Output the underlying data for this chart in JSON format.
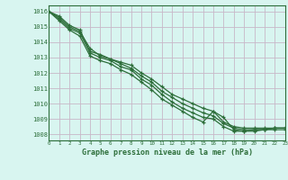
{
  "title": "Graphe pression niveau de la mer (hPa)",
  "bg_color": "#d8f5f0",
  "grid_color": "#c8b8c8",
  "line_color": "#2d6e3a",
  "x_ticks": [
    0,
    1,
    2,
    3,
    4,
    5,
    6,
    7,
    8,
    9,
    10,
    11,
    12,
    13,
    14,
    15,
    16,
    17,
    18,
    19,
    20,
    21,
    22,
    23
  ],
  "y_ticks": [
    1008,
    1009,
    1010,
    1011,
    1012,
    1013,
    1014,
    1015,
    1016
  ],
  "ylim": [
    1007.6,
    1016.4
  ],
  "xlim": [
    0,
    23
  ],
  "series": [
    [
      1016.0,
      1015.7,
      1015.1,
      1014.8,
      1013.4,
      1013.2,
      1012.9,
      1012.7,
      1012.5,
      1012.0,
      1011.6,
      1011.1,
      1010.6,
      1010.3,
      1010.0,
      1009.7,
      1009.5,
      1008.8,
      1008.5,
      1008.4,
      1008.4,
      1008.4,
      1008.4,
      1008.4
    ],
    [
      1016.0,
      1015.6,
      1015.0,
      1014.7,
      1013.6,
      1013.1,
      1012.9,
      1012.6,
      1012.3,
      1011.8,
      1011.4,
      1010.8,
      1010.4,
      1010.0,
      1009.7,
      1009.4,
      1009.2,
      1008.7,
      1008.4,
      1008.3,
      1008.3,
      1008.3,
      1008.4,
      1008.4
    ],
    [
      1016.0,
      1015.5,
      1014.9,
      1014.6,
      1013.3,
      1013.0,
      1012.8,
      1012.4,
      1012.2,
      1011.6,
      1011.2,
      1010.6,
      1010.1,
      1009.7,
      1009.4,
      1009.1,
      1009.0,
      1008.5,
      1008.2,
      1008.2,
      1008.2,
      1008.3,
      1008.3,
      1008.3
    ],
    [
      1016.0,
      1015.4,
      1014.8,
      1014.4,
      1013.1,
      1012.8,
      1012.6,
      1012.2,
      1011.9,
      1011.4,
      1010.9,
      1010.3,
      1009.9,
      1009.5,
      1009.1,
      1008.8,
      1009.5,
      1009.1,
      1008.3,
      1008.2,
      1008.3,
      1008.3,
      1008.4,
      1008.4
    ]
  ]
}
